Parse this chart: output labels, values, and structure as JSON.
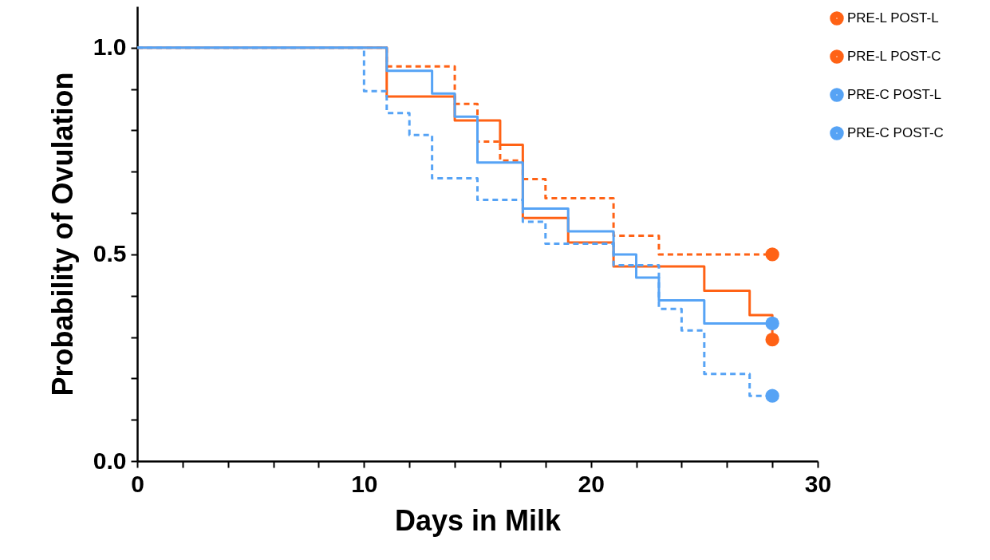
{
  "chart_data": {
    "type": "step",
    "xlabel": "Days in Milk",
    "ylabel": "Probability of Ovulation",
    "xlim": [
      0,
      30
    ],
    "ylim": [
      0,
      1.1
    ],
    "xticks": [
      0,
      {
        "value": 2,
        "label": null
      },
      {
        "value": 4,
        "label": null
      },
      {
        "value": 6,
        "label": null
      },
      {
        "value": 8,
        "label": null
      },
      10,
      {
        "value": 12,
        "label": null
      },
      {
        "value": 14,
        "label": null
      },
      {
        "value": 16,
        "label": null
      },
      {
        "value": 18,
        "label": null
      },
      20,
      {
        "value": 22,
        "label": null
      },
      {
        "value": 24,
        "label": null
      },
      {
        "value": 26,
        "label": null
      },
      {
        "value": 28,
        "label": null
      },
      30
    ],
    "yticks": [
      {
        "value": 0,
        "label": "0.0"
      },
      {
        "value": 0.1,
        "label": null
      },
      {
        "value": 0.2,
        "label": null
      },
      {
        "value": 0.3,
        "label": null
      },
      {
        "value": 0.4,
        "label": null
      },
      0.5,
      {
        "value": 0.6,
        "label": null
      },
      {
        "value": 0.7,
        "label": null
      },
      {
        "value": 0.8,
        "label": null
      },
      {
        "value": 0.9,
        "label": null
      },
      {
        "value": 1,
        "label": "1.0"
      }
    ],
    "grid": false,
    "legend": "top right",
    "series": [
      {
        "name": "PRE-L POST-L",
        "color": "#ff6215",
        "line_style": "solid",
        "x": [
          0,
          11,
          14,
          16,
          17,
          19,
          21,
          25,
          27,
          28
        ],
        "values": [
          1,
          0.882,
          0.824,
          0.765,
          0.588,
          0.529,
          0.471,
          0.412,
          0.353,
          0.294
        ]
      },
      {
        "name": "PRE-L POST-C",
        "color": "#ff6215",
        "line_style": "dashed",
        "x": [
          0,
          11,
          14,
          15,
          16,
          17,
          18,
          21,
          23,
          28
        ],
        "values": [
          1,
          0.955,
          0.864,
          0.773,
          0.727,
          0.682,
          0.636,
          0.545,
          0.5,
          0.5
        ]
      },
      {
        "name": "PRE-C POST-L",
        "color": "#56a3f5",
        "line_style": "solid",
        "x": [
          0,
          11,
          13,
          14,
          15,
          17,
          19,
          21,
          22,
          23,
          25,
          28
        ],
        "values": [
          1,
          0.944,
          0.889,
          0.833,
          0.722,
          0.611,
          0.556,
          0.5,
          0.444,
          0.389,
          0.333,
          0.333
        ]
      },
      {
        "name": "PRE-C POST-C",
        "color": "#56a3f5",
        "line_style": "dashed",
        "x": [
          0,
          10,
          11,
          12,
          13,
          15,
          17,
          18,
          21,
          23,
          24,
          25,
          27,
          28
        ],
        "values": [
          1,
          0.895,
          0.842,
          0.789,
          0.684,
          0.632,
          0.579,
          0.526,
          0.474,
          0.368,
          0.316,
          0.211,
          0.158,
          0.158
        ]
      },
      {
        "type": "scatter",
        "color": "#ff6215",
        "marker": "circle",
        "x": [
          28,
          28
        ],
        "values": [
          0.294,
          0.5
        ]
      },
      {
        "type": "scatter",
        "color": "#56a3f5",
        "marker": "circle",
        "x": [
          28,
          28
        ],
        "values": [
          0.333,
          0.158
        ]
      }
    ]
  }
}
